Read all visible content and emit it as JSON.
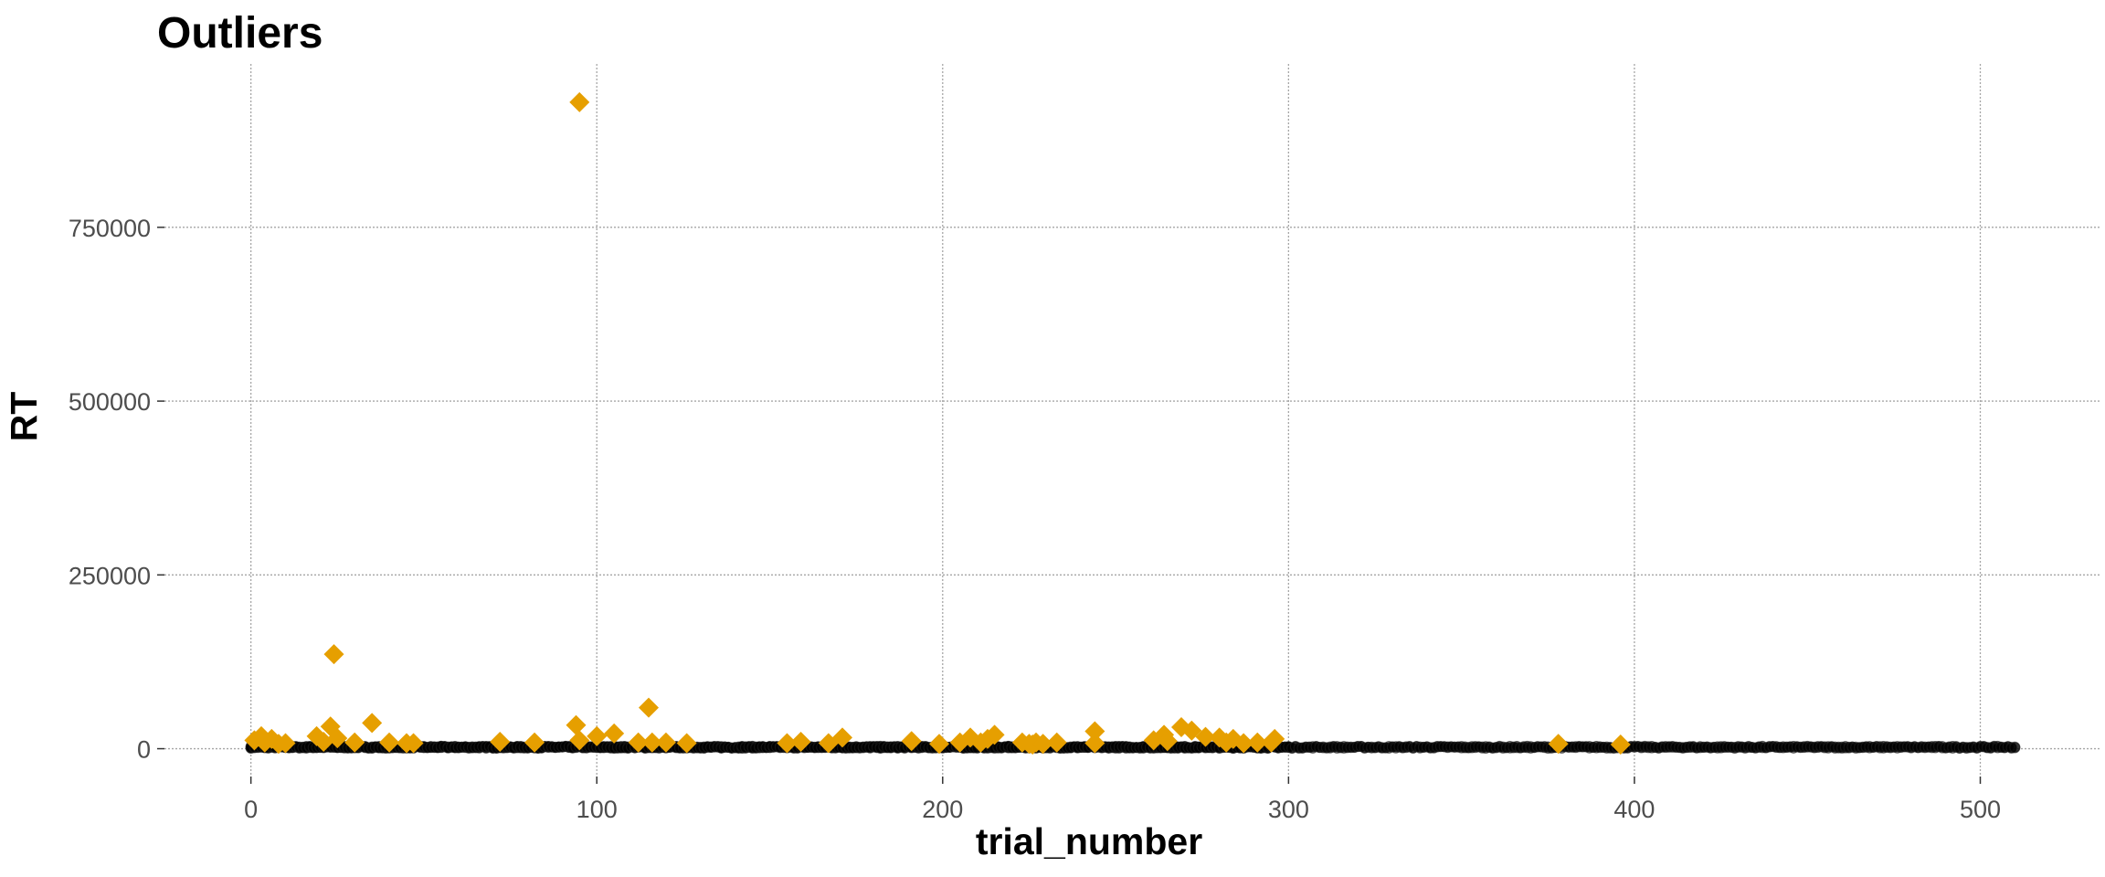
{
  "chart_data": {
    "type": "scatter",
    "title": "Outliers",
    "xlabel": "trial_number",
    "ylabel": "RT",
    "xlim": [
      -25,
      535
    ],
    "ylim": [
      -40000,
      985000
    ],
    "x_ticks": [
      0,
      100,
      200,
      300,
      400,
      500
    ],
    "y_ticks": [
      0,
      250000,
      500000,
      750000
    ],
    "y_tick_labels": [
      "0",
      "250000",
      "500000",
      "750000"
    ],
    "grid": true,
    "colors": {
      "normal": "#000000",
      "outlier": "#E69F00"
    },
    "series": [
      {
        "marker": "circle",
        "color": "#000000",
        "x_range": [
          0,
          510
        ],
        "y_band": [
          800,
          3500
        ]
      },
      {
        "marker": "diamond",
        "color": "#E69F00",
        "points": [
          [
            1,
            12000
          ],
          [
            3,
            18000
          ],
          [
            4,
            9000
          ],
          [
            6,
            14000
          ],
          [
            8,
            7000
          ],
          [
            10,
            8000
          ],
          [
            19,
            18000
          ],
          [
            21,
            10000
          ],
          [
            23,
            32000
          ],
          [
            24,
            136000
          ],
          [
            25,
            15000
          ],
          [
            30,
            9000
          ],
          [
            35,
            37000
          ],
          [
            40,
            9000
          ],
          [
            45,
            8000
          ],
          [
            47,
            8000
          ],
          [
            72,
            10000
          ],
          [
            82,
            9000
          ],
          [
            94,
            34000
          ],
          [
            95,
            930000
          ],
          [
            95,
            12000
          ],
          [
            100,
            18000
          ],
          [
            105,
            22000
          ],
          [
            112,
            9000
          ],
          [
            115,
            59000
          ],
          [
            116,
            9000
          ],
          [
            120,
            9000
          ],
          [
            126,
            8000
          ],
          [
            155,
            8000
          ],
          [
            159,
            10000
          ],
          [
            167,
            8000
          ],
          [
            171,
            16000
          ],
          [
            191,
            11000
          ],
          [
            199,
            7000
          ],
          [
            205,
            9000
          ],
          [
            208,
            16000
          ],
          [
            211,
            9000
          ],
          [
            213,
            14000
          ],
          [
            215,
            20000
          ],
          [
            223,
            9000
          ],
          [
            225,
            7000
          ],
          [
            226,
            6000
          ],
          [
            227,
            9000
          ],
          [
            229,
            7000
          ],
          [
            233,
            9000
          ],
          [
            244,
            25000
          ],
          [
            244,
            8000
          ],
          [
            261,
            12000
          ],
          [
            264,
            20000
          ],
          [
            265,
            11000
          ],
          [
            269,
            31000
          ],
          [
            272,
            26000
          ],
          [
            276,
            17000
          ],
          [
            280,
            16000
          ],
          [
            282,
            9000
          ],
          [
            284,
            14000
          ],
          [
            287,
            8000
          ],
          [
            291,
            9000
          ],
          [
            295,
            9000
          ],
          [
            296,
            14000
          ],
          [
            378,
            7000
          ],
          [
            396,
            6000
          ]
        ]
      }
    ]
  }
}
